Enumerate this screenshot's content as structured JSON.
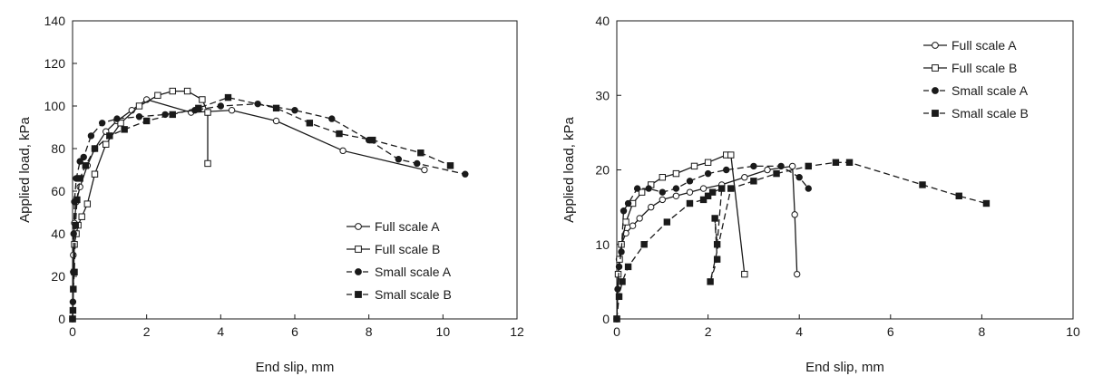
{
  "chart_data": [
    {
      "type": "line",
      "title": "",
      "xlabel": "End slip, mm",
      "ylabel": "Applied load, kPa",
      "xlim": [
        0,
        12
      ],
      "ylim": [
        0,
        140
      ],
      "xticks": [
        0,
        2,
        4,
        6,
        8,
        10,
        12
      ],
      "yticks": [
        0,
        20,
        40,
        60,
        80,
        100,
        120,
        140
      ],
      "legend_position": "bottom-right",
      "series": [
        {
          "name": "Full scale A",
          "marker": "circle-open",
          "dash": "solid",
          "x": [
            0,
            0.02,
            0.05,
            0.1,
            0.2,
            0.4,
            0.6,
            0.9,
            1.2,
            1.6,
            2.0,
            3.2,
            4.3,
            5.5,
            7.3,
            9.5
          ],
          "y": [
            0,
            30,
            45,
            55,
            62,
            72,
            80,
            88,
            93,
            98,
            103,
            97,
            98,
            93,
            79,
            70
          ]
        },
        {
          "name": "Full scale B",
          "marker": "square-open",
          "dash": "solid",
          "x": [
            0,
            0.05,
            0.1,
            0.15,
            0.25,
            0.4,
            0.6,
            0.9,
            1.3,
            1.8,
            2.3,
            2.7,
            3.1,
            3.5,
            3.65,
            3.65
          ],
          "y": [
            0,
            35,
            40,
            44,
            48,
            54,
            68,
            82,
            92,
            100,
            105,
            107,
            107,
            103,
            97,
            73
          ]
        },
        {
          "name": "Small scale A",
          "marker": "circle-filled",
          "dash": "dash",
          "x": [
            0,
            0.01,
            0.02,
            0.03,
            0.05,
            0.1,
            0.2,
            0.3,
            0.5,
            0.8,
            1.2,
            1.8,
            2.5,
            3.3,
            4.0,
            5.0,
            6.0,
            7.0,
            8.0,
            8.8,
            9.3,
            10.6
          ],
          "y": [
            0,
            8,
            22,
            40,
            55,
            66,
            74,
            76,
            86,
            92,
            94,
            95,
            96,
            98,
            100,
            101,
            98,
            94,
            84,
            75,
            73,
            68
          ]
        },
        {
          "name": "Small scale B",
          "marker": "square-filled",
          "dash": "dash",
          "x": [
            0,
            0.01,
            0.02,
            0.05,
            0.08,
            0.12,
            0.2,
            0.35,
            0.6,
            1.0,
            1.4,
            2.0,
            2.7,
            3.4,
            4.2,
            5.5,
            6.4,
            7.2,
            8.1,
            9.4,
            10.2
          ],
          "y": [
            0,
            4,
            14,
            22,
            44,
            56,
            66,
            72,
            80,
            86,
            89,
            93,
            96,
            99,
            104,
            99,
            92,
            87,
            84,
            78,
            72
          ]
        }
      ]
    },
    {
      "type": "line",
      "title": "",
      "xlabel": "End slip, mm",
      "ylabel": "Applied load, kPa",
      "xlim": [
        0,
        10
      ],
      "ylim": [
        0,
        40
      ],
      "xticks": [
        0,
        2,
        4,
        6,
        8,
        10
      ],
      "yticks": [
        0,
        10,
        20,
        30,
        40
      ],
      "legend_position": "top-right",
      "series": [
        {
          "name": "Full scale A",
          "marker": "circle-open",
          "dash": "solid",
          "x": [
            0,
            0.05,
            0.1,
            0.2,
            0.35,
            0.5,
            0.75,
            1.0,
            1.3,
            1.6,
            1.9,
            2.3,
            2.8,
            3.3,
            3.85,
            3.9,
            3.95
          ],
          "y": [
            0,
            8,
            10,
            11.5,
            12.5,
            13.5,
            15,
            16,
            16.5,
            17,
            17.5,
            18,
            19,
            20,
            20.5,
            14,
            6
          ]
        },
        {
          "name": "Full scale B",
          "marker": "square-open",
          "dash": "solid",
          "x": [
            0,
            0.03,
            0.06,
            0.1,
            0.2,
            0.35,
            0.55,
            0.75,
            1.0,
            1.3,
            1.7,
            2.0,
            2.4,
            2.5,
            2.8
          ],
          "y": [
            0,
            6,
            8,
            10,
            13,
            15.5,
            17,
            18,
            19,
            19.5,
            20.5,
            21,
            22,
            22,
            6
          ]
        },
        {
          "name": "Small scale A",
          "marker": "circle-filled",
          "dash": "dash",
          "x": [
            0,
            0.02,
            0.05,
            0.1,
            0.15,
            0.25,
            0.45,
            0.7,
            1.0,
            1.3,
            1.6,
            2.0,
            2.4,
            3.0,
            3.6,
            4.0,
            4.2
          ],
          "y": [
            0,
            4,
            7,
            9,
            14.5,
            15.5,
            17.5,
            17.5,
            17,
            17.5,
            18.5,
            19.5,
            20,
            20.5,
            20.5,
            19,
            17.5
          ]
        },
        {
          "name": "Small scale B",
          "marker": "square-filled",
          "dash": "dash",
          "x": [
            0,
            0.05,
            0.12,
            0.25,
            0.6,
            1.1,
            1.6,
            1.9,
            2.0,
            2.1,
            2.3,
            2.2,
            2.15,
            2.2,
            2.05,
            2.5,
            3.0,
            3.5,
            4.2,
            4.8,
            5.1,
            6.7,
            7.5,
            8.1
          ],
          "y": [
            0,
            3,
            5,
            7,
            10,
            13,
            15.5,
            16,
            16.5,
            17,
            17.5,
            10,
            13.5,
            8,
            5,
            17.5,
            18.5,
            19.5,
            20.5,
            21,
            21,
            18,
            16.5,
            15.5
          ]
        }
      ]
    }
  ]
}
